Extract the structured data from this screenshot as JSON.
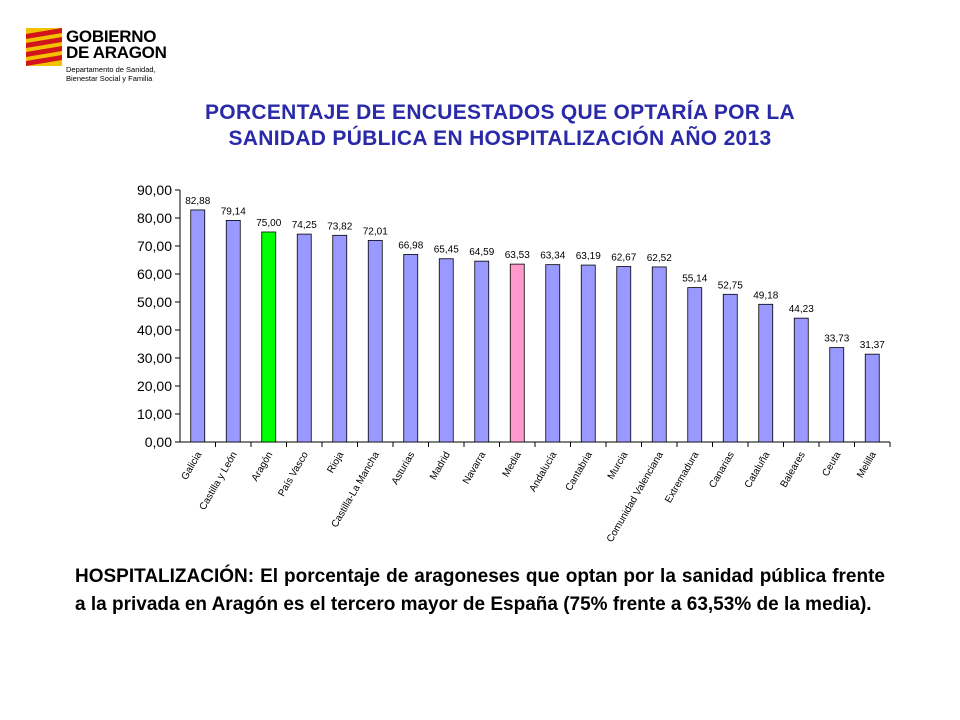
{
  "logo": {
    "line1": "GOBIERNO",
    "line2": "DE ARAGON",
    "sub1": "Departamento de Sanidad,",
    "sub2": "Bienestar Social y Familia",
    "colors": {
      "yellow": "#f2c200",
      "red": "#d2141c"
    }
  },
  "chart_data": {
    "type": "bar",
    "title_line1": "PORCENTAJE DE ENCUESTADOS QUE OPTARÍA POR LA",
    "title_line2": "SANIDAD PÚBLICA EN HOSPITALIZACIÓN AÑO 2013",
    "categories": [
      "Galicia",
      "Castilla y León",
      "Aragón",
      "País Vasco",
      "Rioja",
      "Castilla-La Mancha",
      "Asturias",
      "Madrid",
      "Navarra",
      "Media",
      "Andalucía",
      "Cantabria",
      "Murcia",
      "Comunidad Valenciana",
      "Extremadura",
      "Canarias",
      "Cataluña",
      "Baleares",
      "Ceuta",
      "Melilla"
    ],
    "values": [
      82.88,
      79.14,
      75.0,
      74.25,
      73.82,
      72.01,
      66.98,
      65.45,
      64.59,
      63.53,
      63.34,
      63.19,
      62.67,
      62.52,
      55.14,
      52.75,
      49.18,
      44.23,
      33.73,
      31.37
    ],
    "value_labels": [
      "82,88",
      "79,14",
      "75,00",
      "74,25",
      "73,82",
      "72,01",
      "66,98",
      "65,45",
      "64,59",
      "63,53",
      "63,34",
      "63,19",
      "62,67",
      "62,52",
      "55,14",
      "52,75",
      "49,18",
      "44,23",
      "33,73",
      "31,37"
    ],
    "y_ticks": [
      "0,00",
      "10,00",
      "20,00",
      "30,00",
      "40,00",
      "50,00",
      "60,00",
      "70,00",
      "80,00",
      "90,00"
    ],
    "ylim": [
      0,
      90
    ],
    "grid": false,
    "colors": {
      "default": "#9999ff",
      "aragon": "#00ff00",
      "media": "#ff99cc",
      "edge": "#000000",
      "title": "#2a2aa8"
    },
    "highlight": {
      "Aragón": "aragon",
      "Media": "media"
    }
  },
  "caption": "HOSPITALIZACIÓN: El porcentaje de aragoneses que optan por la sanidad pública frente a la privada en Aragón es el tercero mayor de España (75% frente a 63,53% de la media)."
}
